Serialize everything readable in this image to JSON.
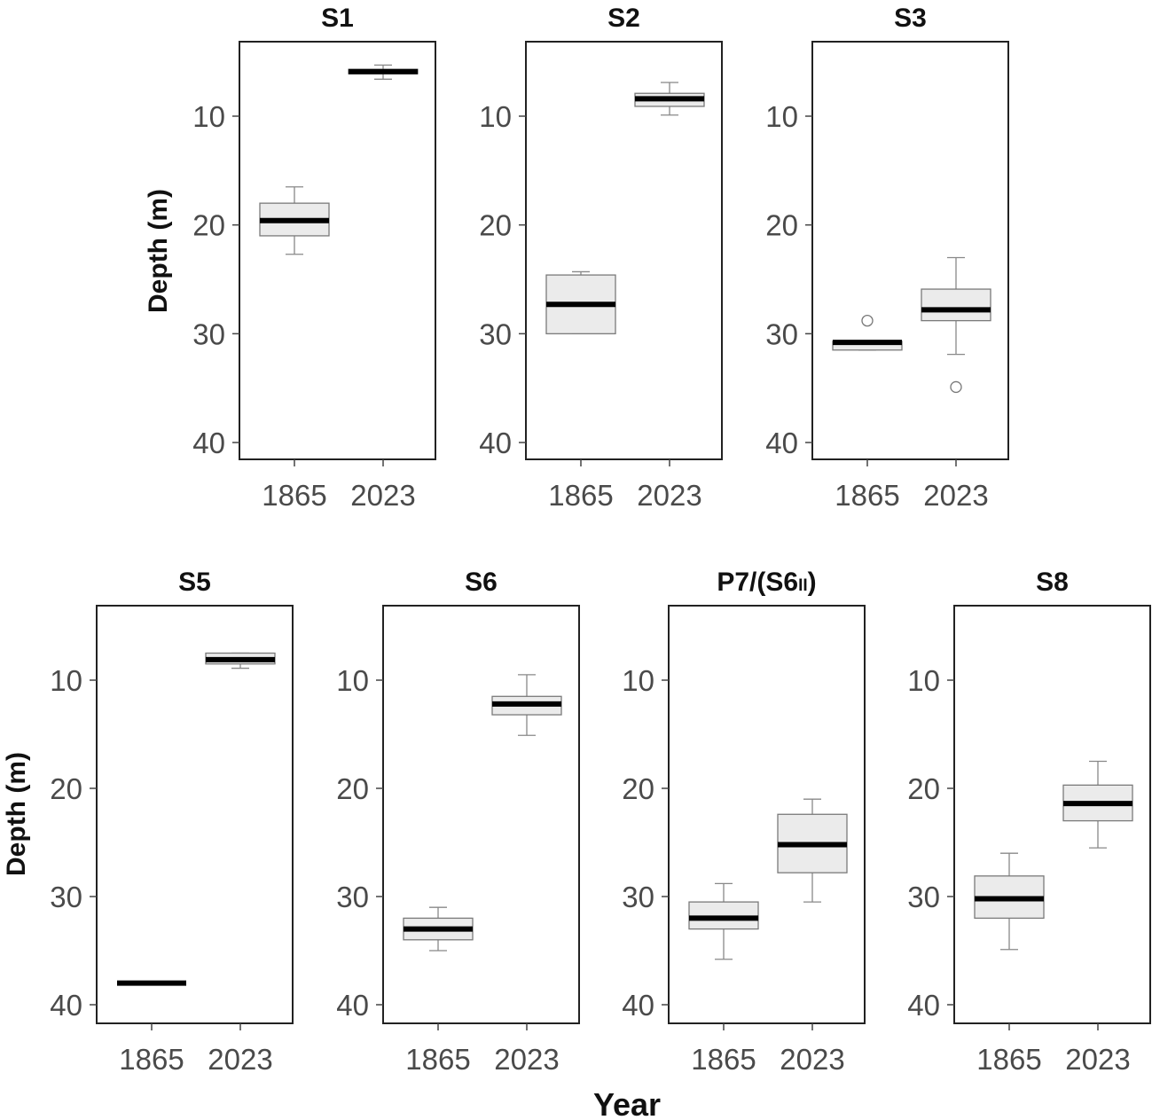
{
  "figure": {
    "xlabel": "Year",
    "ylabel": "Depth (m)"
  },
  "chart_data": [
    {
      "type": "boxplot",
      "title": "S1",
      "categories": [
        "1865",
        "2023"
      ],
      "ylim": [
        42,
        3
      ],
      "yticks": [
        10,
        20,
        30,
        40
      ],
      "ylabel": "Depth (m)",
      "boxes": [
        {
          "category": "1865",
          "whisker_low": 16.5,
          "q1": 18,
          "median": 19.6,
          "q3": 21,
          "whisker_high": 22.7,
          "outliers": []
        },
        {
          "category": "2023",
          "whisker_low": 5.3,
          "q1": 5.7,
          "median": 5.9,
          "q3": 6.1,
          "whisker_high": 6.6,
          "outliers": []
        }
      ]
    },
    {
      "type": "boxplot",
      "title": "S2",
      "categories": [
        "1865",
        "2023"
      ],
      "ylim": [
        42,
        3
      ],
      "yticks": [
        10,
        20,
        30,
        40
      ],
      "boxes": [
        {
          "category": "1865",
          "whisker_low": 24.3,
          "q1": 24.6,
          "median": 27.3,
          "q3": 30,
          "whisker_high": 30,
          "outliers": []
        },
        {
          "category": "2023",
          "whisker_low": 6.9,
          "q1": 7.9,
          "median": 8.4,
          "q3": 9.1,
          "whisker_high": 9.9,
          "outliers": []
        }
      ]
    },
    {
      "type": "boxplot",
      "title": "S3",
      "categories": [
        "1865",
        "2023"
      ],
      "ylim": [
        42,
        3
      ],
      "yticks": [
        10,
        20,
        30,
        40
      ],
      "boxes": [
        {
          "category": "1865",
          "whisker_low": 30.7,
          "q1": 30.7,
          "median": 30.8,
          "q3": 31.5,
          "whisker_high": 31.5,
          "outliers": [
            28.8
          ]
        },
        {
          "category": "2023",
          "whisker_low": 23,
          "q1": 25.9,
          "median": 27.8,
          "q3": 28.8,
          "whisker_high": 31.9,
          "outliers": [
            34.9
          ]
        }
      ]
    },
    {
      "type": "boxplot",
      "title": "S5",
      "categories": [
        "1865",
        "2023"
      ],
      "ylim": [
        42,
        3
      ],
      "yticks": [
        10,
        20,
        30,
        40
      ],
      "ylabel": "Depth (m)",
      "boxes": [
        {
          "category": "1865",
          "whisker_low": 38,
          "q1": 38,
          "median": 38,
          "q3": 38,
          "whisker_high": 38,
          "outliers": []
        },
        {
          "category": "2023",
          "whisker_low": 7.5,
          "q1": 7.5,
          "median": 8.1,
          "q3": 8.5,
          "whisker_high": 8.9,
          "outliers": []
        }
      ]
    },
    {
      "type": "boxplot",
      "title": "S6",
      "categories": [
        "1865",
        "2023"
      ],
      "ylim": [
        42,
        3
      ],
      "yticks": [
        10,
        20,
        30,
        40
      ],
      "boxes": [
        {
          "category": "1865",
          "whisker_low": 31,
          "q1": 32,
          "median": 33,
          "q3": 34,
          "whisker_high": 35,
          "outliers": []
        },
        {
          "category": "2023",
          "whisker_low": 9.5,
          "q1": 11.5,
          "median": 12.2,
          "q3": 13.2,
          "whisker_high": 15.1,
          "outliers": []
        }
      ]
    },
    {
      "type": "boxplot",
      "title": "P7/(S6",
      "title_subscript": "II",
      "title_suffix": ")",
      "categories": [
        "1865",
        "2023"
      ],
      "ylim": [
        42,
        3
      ],
      "yticks": [
        10,
        20,
        30,
        40
      ],
      "boxes": [
        {
          "category": "1865",
          "whisker_low": 28.8,
          "q1": 30.5,
          "median": 32,
          "q3": 33,
          "whisker_high": 35.8,
          "outliers": []
        },
        {
          "category": "2023",
          "whisker_low": 21,
          "q1": 22.4,
          "median": 25.2,
          "q3": 27.8,
          "whisker_high": 30.5,
          "outliers": []
        }
      ]
    },
    {
      "type": "boxplot",
      "title": "S8",
      "categories": [
        "1865",
        "2023"
      ],
      "ylim": [
        42,
        3
      ],
      "yticks": [
        10,
        20,
        30,
        40
      ],
      "boxes": [
        {
          "category": "1865",
          "whisker_low": 26,
          "q1": 28.1,
          "median": 30.2,
          "q3": 32,
          "whisker_high": 34.9,
          "outliers": []
        },
        {
          "category": "2023",
          "whisker_low": 17.5,
          "q1": 19.7,
          "median": 21.4,
          "q3": 23,
          "whisker_high": 25.5,
          "outliers": []
        }
      ]
    }
  ]
}
